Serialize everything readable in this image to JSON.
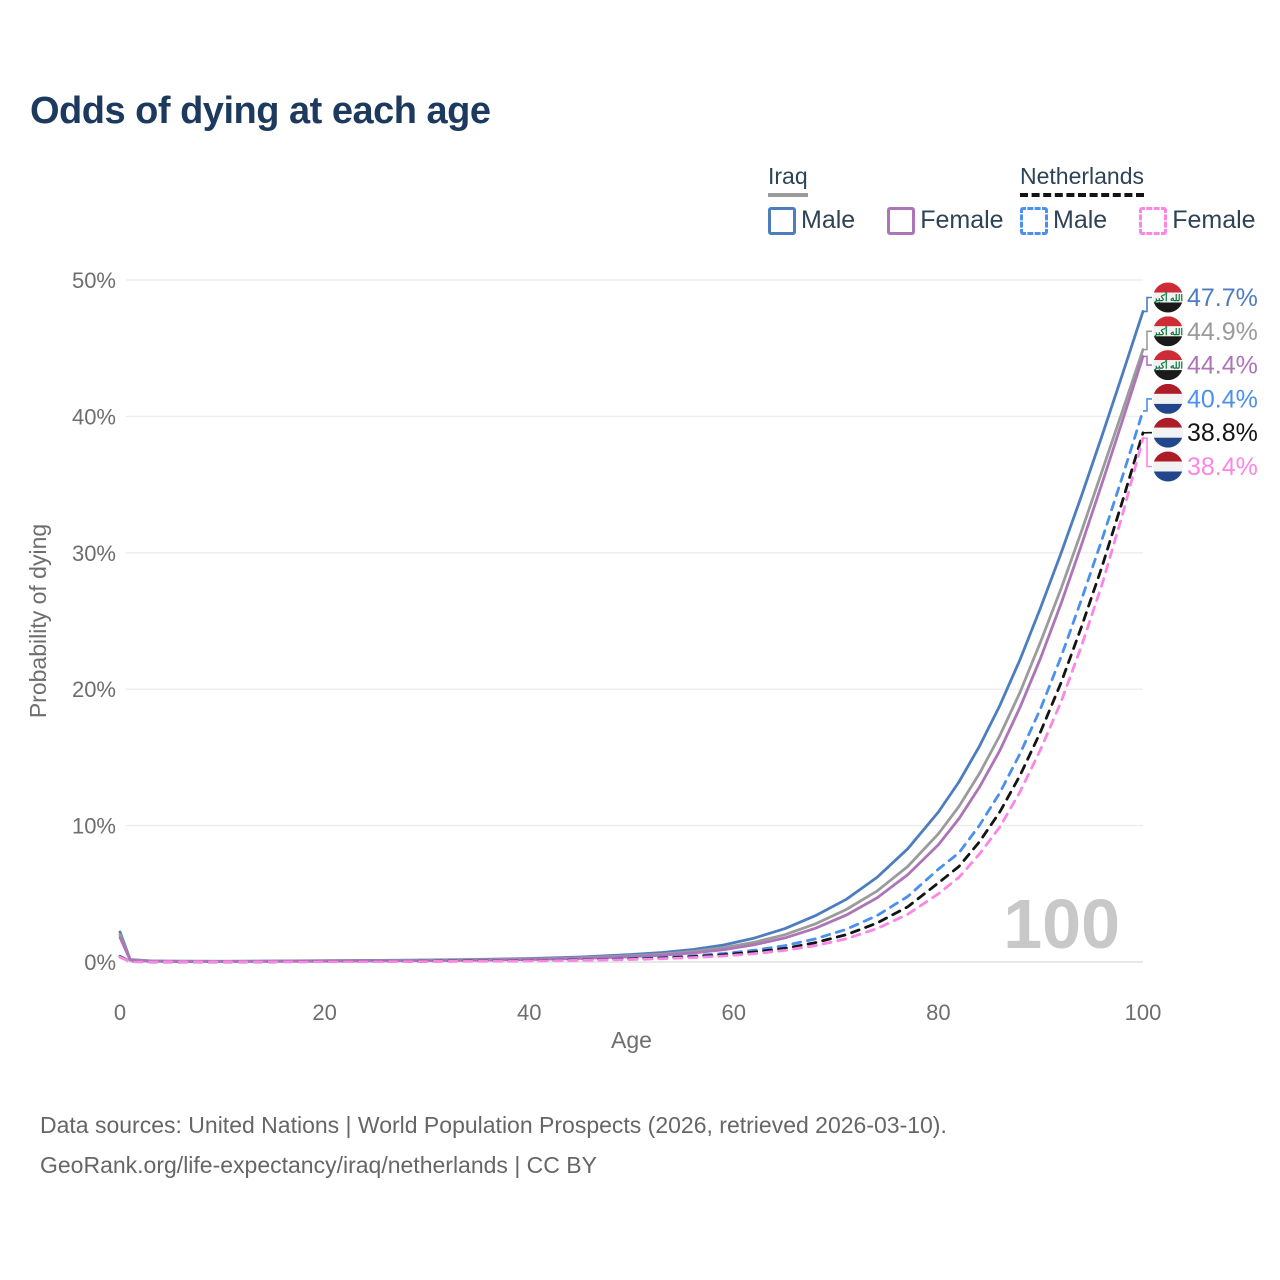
{
  "title": "Odds of dying at each age",
  "watermark": "100",
  "legend": {
    "groups": [
      {
        "label": "Iraq",
        "line_style": "solid",
        "underline_color": "#9b9b9b",
        "items": [
          {
            "label": "Male",
            "color": "#4d7dbf"
          },
          {
            "label": "Female",
            "color": "#ad74b8"
          }
        ]
      },
      {
        "label": "Netherlands",
        "line_style": "dashed",
        "underline_color": "#141414",
        "items": [
          {
            "label": "Male",
            "color": "#4b90f0"
          },
          {
            "label": "Female",
            "color": "#fb86e6"
          }
        ]
      }
    ]
  },
  "footer": {
    "line1": "Data sources: United Nations | World Population Prospects (2026, retrieved 2026-03-10).",
    "line2": "GeoRank.org/life-expectancy/iraq/netherlands | CC BY"
  },
  "chart_data": {
    "type": "line",
    "title": "Odds of dying at each age",
    "xlabel": "Age",
    "ylabel": "Probability of dying",
    "xlim": [
      0,
      100
    ],
    "ylim": [
      0,
      50
    ],
    "x_ticks": [
      0,
      20,
      40,
      60,
      80,
      100
    ],
    "y_ticks": [
      0,
      10,
      20,
      30,
      40,
      50
    ],
    "y_tick_suffix": "%",
    "grid": true,
    "legend_position": "top-right",
    "colors": {
      "axis_text": "#6e6e6e",
      "grid": "#ededed",
      "baseline": "#e0e0e0",
      "watermark": "#c8c8c8"
    },
    "flags": {
      "iraq": {
        "stripes": [
          "#ce2b37",
          "#f2f2f2",
          "#1a1a1a"
        ],
        "emblem": "الله أكبر",
        "emblem_color": "#0a7a3d"
      },
      "netherlands": {
        "stripes": [
          "#ae1c28",
          "#f2f2f2",
          "#21468b"
        ]
      }
    },
    "series": [
      {
        "name": "Iraq Male",
        "country": "Iraq",
        "sex": "Male",
        "flag": "iraq",
        "color": "#4d7dbf",
        "dash": false,
        "end_value": 47.7,
        "end_label": "47.7%",
        "points": [
          [
            0,
            2.2
          ],
          [
            1,
            0.18
          ],
          [
            3,
            0.08
          ],
          [
            5,
            0.06
          ],
          [
            10,
            0.05
          ],
          [
            15,
            0.07
          ],
          [
            20,
            0.1
          ],
          [
            25,
            0.12
          ],
          [
            30,
            0.15
          ],
          [
            35,
            0.19
          ],
          [
            40,
            0.26
          ],
          [
            45,
            0.37
          ],
          [
            50,
            0.55
          ],
          [
            53,
            0.7
          ],
          [
            56,
            0.92
          ],
          [
            59,
            1.25
          ],
          [
            62,
            1.75
          ],
          [
            65,
            2.45
          ],
          [
            68,
            3.4
          ],
          [
            71,
            4.6
          ],
          [
            74,
            6.2
          ],
          [
            77,
            8.3
          ],
          [
            80,
            11
          ],
          [
            82,
            13.2
          ],
          [
            84,
            15.8
          ],
          [
            86,
            18.8
          ],
          [
            88,
            22.2
          ],
          [
            90,
            26
          ],
          [
            92,
            30
          ],
          [
            94,
            34.2
          ],
          [
            96,
            38.6
          ],
          [
            98,
            43.1
          ],
          [
            100,
            47.7
          ]
        ]
      },
      {
        "name": "Iraq Both sexes",
        "country": "Iraq",
        "sex": "Both",
        "flag": "iraq",
        "color": "#9b9b9b",
        "dash": false,
        "end_value": 44.9,
        "end_label": "44.9%",
        "points": [
          [
            0,
            2.0
          ],
          [
            1,
            0.16
          ],
          [
            3,
            0.07
          ],
          [
            5,
            0.05
          ],
          [
            10,
            0.04
          ],
          [
            15,
            0.06
          ],
          [
            20,
            0.08
          ],
          [
            25,
            0.1
          ],
          [
            30,
            0.12
          ],
          [
            35,
            0.16
          ],
          [
            40,
            0.22
          ],
          [
            45,
            0.31
          ],
          [
            50,
            0.46
          ],
          [
            53,
            0.58
          ],
          [
            56,
            0.77
          ],
          [
            59,
            1.04
          ],
          [
            62,
            1.45
          ],
          [
            65,
            2.0
          ],
          [
            68,
            2.8
          ],
          [
            71,
            3.85
          ],
          [
            74,
            5.2
          ],
          [
            77,
            7.0
          ],
          [
            80,
            9.4
          ],
          [
            82,
            11.4
          ],
          [
            84,
            13.8
          ],
          [
            86,
            16.6
          ],
          [
            88,
            19.8
          ],
          [
            90,
            23.5
          ],
          [
            92,
            27.4
          ],
          [
            94,
            31.6
          ],
          [
            96,
            36
          ],
          [
            98,
            40.4
          ],
          [
            100,
            44.9
          ]
        ]
      },
      {
        "name": "Iraq Female",
        "country": "Iraq",
        "sex": "Female",
        "flag": "iraq",
        "color": "#ad74b8",
        "dash": false,
        "end_value": 44.4,
        "end_label": "44.4%",
        "points": [
          [
            0,
            1.8
          ],
          [
            1,
            0.14
          ],
          [
            3,
            0.06
          ],
          [
            5,
            0.04
          ],
          [
            10,
            0.035
          ],
          [
            15,
            0.05
          ],
          [
            20,
            0.06
          ],
          [
            25,
            0.08
          ],
          [
            30,
            0.1
          ],
          [
            35,
            0.13
          ],
          [
            40,
            0.18
          ],
          [
            45,
            0.26
          ],
          [
            50,
            0.39
          ],
          [
            53,
            0.5
          ],
          [
            56,
            0.66
          ],
          [
            59,
            0.9
          ],
          [
            62,
            1.26
          ],
          [
            65,
            1.77
          ],
          [
            68,
            2.48
          ],
          [
            71,
            3.44
          ],
          [
            74,
            4.7
          ],
          [
            77,
            6.4
          ],
          [
            80,
            8.6
          ],
          [
            82,
            10.5
          ],
          [
            84,
            12.8
          ],
          [
            86,
            15.5
          ],
          [
            88,
            18.7
          ],
          [
            90,
            22.3
          ],
          [
            92,
            26.3
          ],
          [
            94,
            30.6
          ],
          [
            96,
            35.1
          ],
          [
            98,
            39.7
          ],
          [
            100,
            44.4
          ]
        ]
      },
      {
        "name": "Netherlands Male",
        "country": "Netherlands",
        "sex": "Male",
        "flag": "netherlands",
        "color": "#4b90f0",
        "dash": true,
        "end_value": 40.4,
        "end_label": "40.4%",
        "points": [
          [
            0,
            0.42
          ],
          [
            1,
            0.03
          ],
          [
            3,
            0.015
          ],
          [
            5,
            0.01
          ],
          [
            10,
            0.01
          ],
          [
            15,
            0.02
          ],
          [
            20,
            0.04
          ],
          [
            25,
            0.05
          ],
          [
            30,
            0.06
          ],
          [
            35,
            0.08
          ],
          [
            40,
            0.11
          ],
          [
            45,
            0.16
          ],
          [
            50,
            0.25
          ],
          [
            53,
            0.33
          ],
          [
            56,
            0.45
          ],
          [
            59,
            0.62
          ],
          [
            62,
            0.86
          ],
          [
            65,
            1.2
          ],
          [
            68,
            1.7
          ],
          [
            71,
            2.4
          ],
          [
            74,
            3.4
          ],
          [
            77,
            4.8
          ],
          [
            80,
            6.8
          ],
          [
            82,
            8.0
          ],
          [
            84,
            10.0
          ],
          [
            86,
            12.4
          ],
          [
            88,
            15.3
          ],
          [
            90,
            18.6
          ],
          [
            92,
            22.4
          ],
          [
            94,
            26.6
          ],
          [
            96,
            31
          ],
          [
            98,
            35.6
          ],
          [
            100,
            40.4
          ]
        ]
      },
      {
        "name": "Netherlands Both sexes",
        "country": "Netherlands",
        "sex": "Both",
        "flag": "netherlands",
        "color": "#141414",
        "dash": true,
        "end_value": 38.8,
        "end_label": "38.8%",
        "points": [
          [
            0,
            0.38
          ],
          [
            1,
            0.028
          ],
          [
            3,
            0.013
          ],
          [
            5,
            0.009
          ],
          [
            10,
            0.009
          ],
          [
            15,
            0.017
          ],
          [
            20,
            0.03
          ],
          [
            25,
            0.04
          ],
          [
            30,
            0.05
          ],
          [
            35,
            0.07
          ],
          [
            40,
            0.1
          ],
          [
            45,
            0.14
          ],
          [
            50,
            0.22
          ],
          [
            53,
            0.29
          ],
          [
            56,
            0.39
          ],
          [
            59,
            0.53
          ],
          [
            62,
            0.73
          ],
          [
            65,
            1.0
          ],
          [
            68,
            1.42
          ],
          [
            71,
            2.0
          ],
          [
            74,
            2.85
          ],
          [
            77,
            4.05
          ],
          [
            80,
            5.8
          ],
          [
            82,
            7.0
          ],
          [
            84,
            8.8
          ],
          [
            86,
            11.0
          ],
          [
            88,
            13.7
          ],
          [
            90,
            16.9
          ],
          [
            92,
            20.5
          ],
          [
            94,
            24.6
          ],
          [
            96,
            29
          ],
          [
            98,
            33.8
          ],
          [
            100,
            38.8
          ]
        ]
      },
      {
        "name": "Netherlands Female",
        "country": "Netherlands",
        "sex": "Female",
        "flag": "netherlands",
        "color": "#fb86e6",
        "dash": true,
        "end_value": 38.4,
        "end_label": "38.4%",
        "points": [
          [
            0,
            0.35
          ],
          [
            1,
            0.025
          ],
          [
            3,
            0.012
          ],
          [
            5,
            0.008
          ],
          [
            10,
            0.008
          ],
          [
            15,
            0.014
          ],
          [
            20,
            0.02
          ],
          [
            25,
            0.03
          ],
          [
            30,
            0.04
          ],
          [
            35,
            0.06
          ],
          [
            40,
            0.08
          ],
          [
            45,
            0.12
          ],
          [
            50,
            0.18
          ],
          [
            53,
            0.24
          ],
          [
            56,
            0.32
          ],
          [
            59,
            0.44
          ],
          [
            62,
            0.61
          ],
          [
            65,
            0.85
          ],
          [
            68,
            1.2
          ],
          [
            71,
            1.7
          ],
          [
            74,
            2.45
          ],
          [
            77,
            3.5
          ],
          [
            80,
            5.0
          ],
          [
            82,
            6.2
          ],
          [
            84,
            7.9
          ],
          [
            86,
            9.9
          ],
          [
            88,
            12.5
          ],
          [
            90,
            15.6
          ],
          [
            92,
            19.1
          ],
          [
            94,
            23.2
          ],
          [
            96,
            27.7
          ],
          [
            98,
            32.8
          ],
          [
            100,
            38.4
          ]
        ]
      }
    ]
  }
}
